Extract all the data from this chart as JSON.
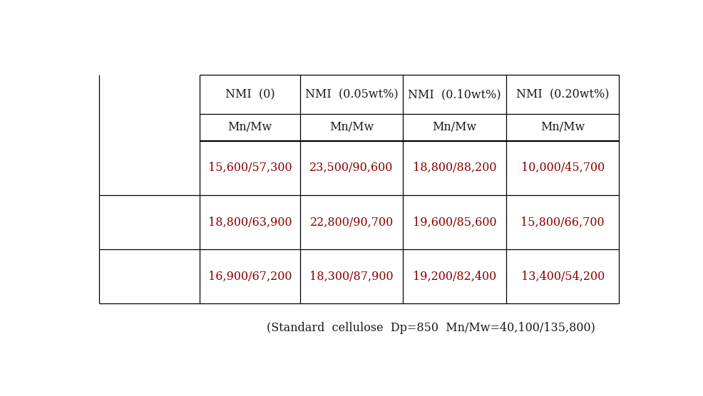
{
  "col_headers": [
    "NMI  (0)",
    "NMI  (0.05wt%)",
    "NMI  (0.10wt%)",
    "NMI  (0.20wt%)"
  ],
  "sub_headers": [
    "Mn/Mw",
    "Mn/Mw",
    "Mn/Mw",
    "Mn/Mw"
  ],
  "rows": [
    [
      "15,600/57,300",
      "23,500/90,600",
      "18,800/88,200",
      "10,000/45,700"
    ],
    [
      "18,800/63,900",
      "22,800/90,700",
      "19,600/85,600",
      "15,800/66,700"
    ],
    [
      "16,900/67,200",
      "18,300/87,900",
      "19,200/82,400",
      "13,400/54,200"
    ]
  ],
  "footnote": "(Standard  cellulose  Dp=850  Mn/Mw=40,100/135,800)",
  "data_text_color": "#8B0000",
  "header_text_color": "#1a1a1a",
  "line_color": "#000000",
  "bg_color": "#ffffff",
  "font_size": 11.5,
  "footnote_font_size": 11.5
}
